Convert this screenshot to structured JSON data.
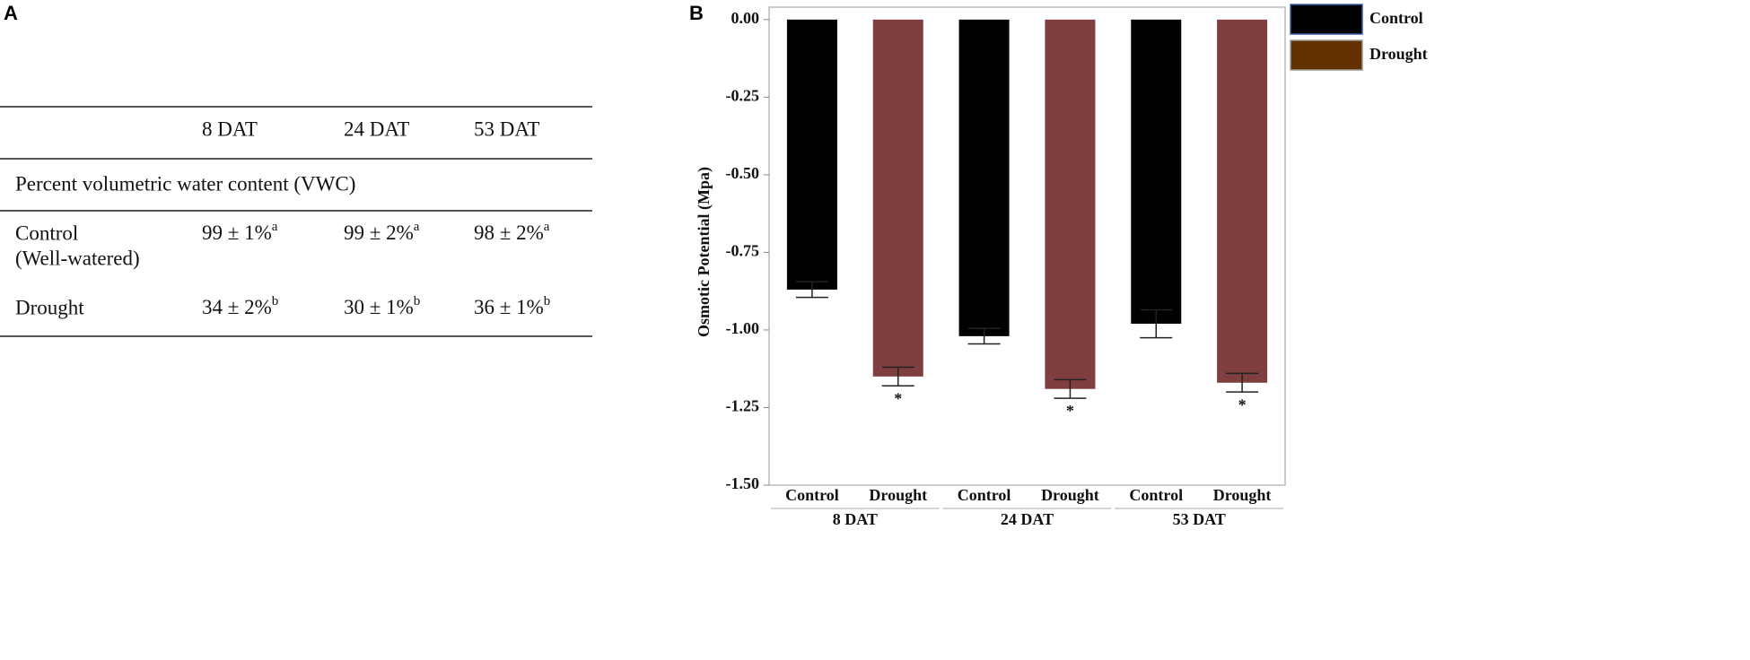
{
  "panels": [
    "A",
    "B"
  ],
  "table": {
    "columns": [
      "8 DAT",
      "24 DAT",
      "53 DAT"
    ],
    "section": "Percent volumetric water content (VWC)",
    "rows": [
      {
        "label": [
          "Control",
          "(Well-watered)"
        ],
        "cells": [
          {
            "text": "99 ± 1%",
            "sup": "a"
          },
          {
            "text": "99 ± 2%",
            "sup": "a"
          },
          {
            "text": "98 ± 2%",
            "sup": "a"
          }
        ]
      },
      {
        "label": [
          "Drought"
        ],
        "cells": [
          {
            "text": "34 ± 2%",
            "sup": "b"
          },
          {
            "text": "30 ± 1%",
            "sup": "b"
          },
          {
            "text": "36 ± 1%",
            "sup": "b"
          }
        ]
      }
    ]
  },
  "chart_data": {
    "type": "bar",
    "ylabel": "Osmotic Potential (Mpa)",
    "groups": [
      "8 DAT",
      "24 DAT",
      "53 DAT"
    ],
    "series": [
      {
        "name": "Control",
        "color": "#000000",
        "legend_color": "#000000",
        "values": [
          -0.87,
          -1.02,
          -0.98
        ],
        "errors": [
          0.025,
          0.025,
          0.045
        ]
      },
      {
        "name": "Drought",
        "color": "#7f3f3f",
        "legend_color": "#633100",
        "values": [
          -1.15,
          -1.19,
          -1.17
        ],
        "errors": [
          0.03,
          0.03,
          0.03
        ],
        "significance": [
          "*",
          "*",
          "*"
        ],
        "significance_color": "#ff0000"
      }
    ],
    "ylim": [
      -1.5,
      0.04
    ],
    "yticks": [
      {
        "value": 0,
        "label": "0.00"
      },
      {
        "value": -0.25,
        "label": "-0.25"
      },
      {
        "value": -0.5,
        "label": "-0.50"
      },
      {
        "value": -0.75,
        "label": "-0.75"
      },
      {
        "value": -1,
        "label": "-1.00"
      },
      {
        "value": -1.25,
        "label": "-1.25"
      },
      {
        "value": -1.5,
        "label": "-1.50"
      }
    ],
    "legend": "right"
  }
}
